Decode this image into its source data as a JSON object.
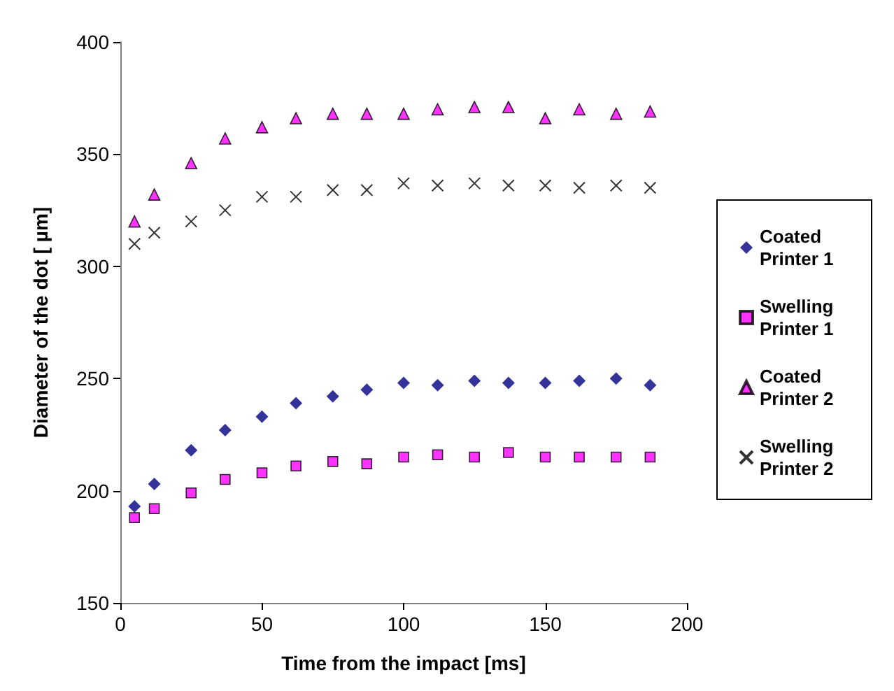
{
  "chart_data": {
    "type": "scatter",
    "xlabel": "Time from the impact [ms]",
    "ylabel": "Diameter of the dot [ µm]",
    "x": [
      5,
      12,
      25,
      37,
      50,
      62,
      75,
      87,
      100,
      112,
      125,
      137,
      150,
      162,
      175,
      187
    ],
    "xlim": [
      0,
      200
    ],
    "xticks": [
      0,
      50,
      100,
      150,
      200
    ],
    "ylim": [
      150,
      400
    ],
    "yticks": [
      150,
      200,
      250,
      300,
      350,
      400
    ],
    "grid": false,
    "legend": "right",
    "series": [
      {
        "name": "Coated Printer 1",
        "color": "#000080",
        "marker": "diamond",
        "values": [
          193,
          203,
          218,
          227,
          233,
          239,
          242,
          245,
          248,
          247,
          249,
          248,
          248,
          249,
          250,
          247
        ]
      },
      {
        "name": "Swelling Printer 1",
        "color": "#ff00ff",
        "marker": "square",
        "values": [
          188,
          192,
          199,
          205,
          208,
          211,
          213,
          212,
          215,
          216,
          215,
          217,
          215,
          215,
          215,
          215
        ]
      },
      {
        "name": "Coated Printer 2",
        "color": "#ff00ff",
        "marker": "triangle",
        "values": [
          320,
          332,
          346,
          357,
          362,
          366,
          368,
          368,
          368,
          370,
          371,
          371,
          366,
          370,
          368,
          369
        ]
      },
      {
        "name": "Swelling Printer 2",
        "color": "#000000",
        "marker": "cross",
        "values": [
          310,
          315,
          320,
          325,
          331,
          331,
          334,
          334,
          337,
          336,
          337,
          336,
          336,
          335,
          336,
          335
        ]
      }
    ]
  }
}
